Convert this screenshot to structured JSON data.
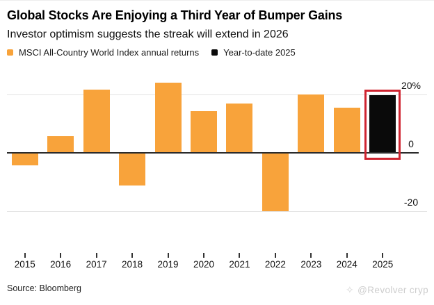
{
  "header": {
    "title": "Global Stocks Are Enjoying a Third Year of Bumper Gains",
    "subtitle": "Investor optimism suggests the streak will extend in 2026"
  },
  "legend": [
    {
      "label": "MSCI All-Country World Index annual returns",
      "color": "#f8a33b"
    },
    {
      "label": "Year-to-date 2025",
      "color": "#0a0a0a"
    }
  ],
  "footer": {
    "source": "Source: Bloomberg",
    "watermark_icon": "✧",
    "watermark": "@Revolver cryp"
  },
  "chart_data": {
    "type": "bar",
    "title": "Global Stocks Are Enjoying a Third Year of Bumper Gains",
    "subtitle": "Investor optimism suggests the streak will extend in 2026",
    "categories": [
      "2015",
      "2016",
      "2017",
      "2018",
      "2019",
      "2020",
      "2021",
      "2022",
      "2023",
      "2024",
      "2025"
    ],
    "series": [
      {
        "name": "MSCI All-Country World Index annual returns",
        "color": "#f8a33b",
        "values": [
          -4.3,
          5.6,
          21.6,
          -11.2,
          24.0,
          14.3,
          16.8,
          -20.0,
          20.1,
          15.4,
          null
        ]
      },
      {
        "name": "Year-to-date 2025",
        "color": "#0a0a0a",
        "values": [
          null,
          null,
          null,
          null,
          null,
          null,
          null,
          null,
          null,
          null,
          19.8
        ]
      }
    ],
    "unit": "%",
    "ylim": [
      -24,
      28
    ],
    "yticks": [
      {
        "value": 20,
        "label": "20%"
      },
      {
        "value": 0,
        "label": "0"
      },
      {
        "value": -20,
        "label": "-20"
      }
    ],
    "grid": "horizontal",
    "legend_position": "top",
    "axis_side": "right",
    "highlight": {
      "index": 10,
      "box_color": "#cf2430"
    },
    "source": "Source: Bloomberg"
  }
}
